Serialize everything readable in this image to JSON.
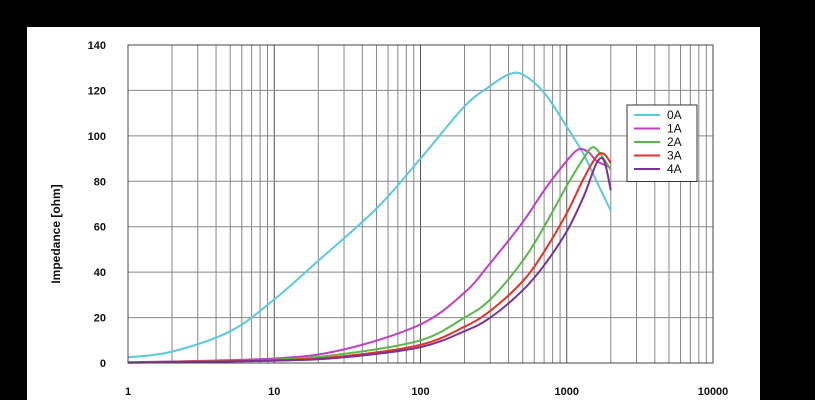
{
  "chart_data": {
    "type": "line",
    "title": "",
    "xlabel": "",
    "ylabel": "Impedance [ohm]",
    "x_scale": "log",
    "xlim": [
      1,
      10000
    ],
    "ylim": [
      0,
      140
    ],
    "x_ticks": [
      1,
      10,
      100,
      1000,
      10000
    ],
    "x_tick_labels": [
      "1",
      "10",
      "100",
      "1000",
      "10000"
    ],
    "y_ticks": [
      0,
      20,
      40,
      60,
      80,
      100,
      120,
      140
    ],
    "y_tick_labels": [
      "0",
      "20",
      "40",
      "60",
      "80",
      "100",
      "120",
      "140"
    ],
    "grid": true,
    "legend_position": "right",
    "series": [
      {
        "name": "0A",
        "color": "#5ec8dc",
        "x": [
          1,
          2,
          5,
          10,
          20,
          50,
          100,
          200,
          300,
          400,
          500,
          700,
          1000,
          1300,
          1600,
          2000
        ],
        "y": [
          2.5,
          5,
          14,
          28,
          45,
          68,
          90,
          113,
          122,
          127,
          127,
          119,
          104,
          92,
          80,
          67
        ]
      },
      {
        "name": "1A",
        "color": "#c040c0",
        "x": [
          1,
          10,
          30,
          100,
          200,
          300,
          500,
          700,
          1000,
          1200,
          1400,
          1600,
          2000
        ],
        "y": [
          0.3,
          2,
          6,
          17,
          31,
          44,
          62,
          76,
          89,
          94,
          93,
          89,
          86
        ]
      },
      {
        "name": "2A",
        "color": "#5ab84a",
        "x": [
          1,
          10,
          30,
          100,
          200,
          300,
          500,
          700,
          1000,
          1300,
          1500,
          1700,
          2000
        ],
        "y": [
          0.2,
          1.5,
          4,
          10,
          20,
          28,
          45,
          60,
          78,
          90,
          95,
          92,
          85
        ]
      },
      {
        "name": "3A",
        "color": "#e8302a",
        "x": [
          1,
          10,
          30,
          100,
          200,
          300,
          500,
          700,
          1000,
          1300,
          1600,
          1800,
          2000
        ],
        "y": [
          0.2,
          1.2,
          3,
          8,
          16,
          23,
          36,
          49,
          66,
          81,
          91,
          92,
          88
        ]
      },
      {
        "name": "4A",
        "color": "#7a3296",
        "x": [
          1,
          10,
          30,
          100,
          200,
          300,
          500,
          700,
          1000,
          1300,
          1600,
          1800,
          2000
        ],
        "y": [
          0.1,
          1,
          2.5,
          7,
          14,
          20,
          32,
          43,
          58,
          73,
          88,
          89,
          76
        ]
      }
    ]
  }
}
